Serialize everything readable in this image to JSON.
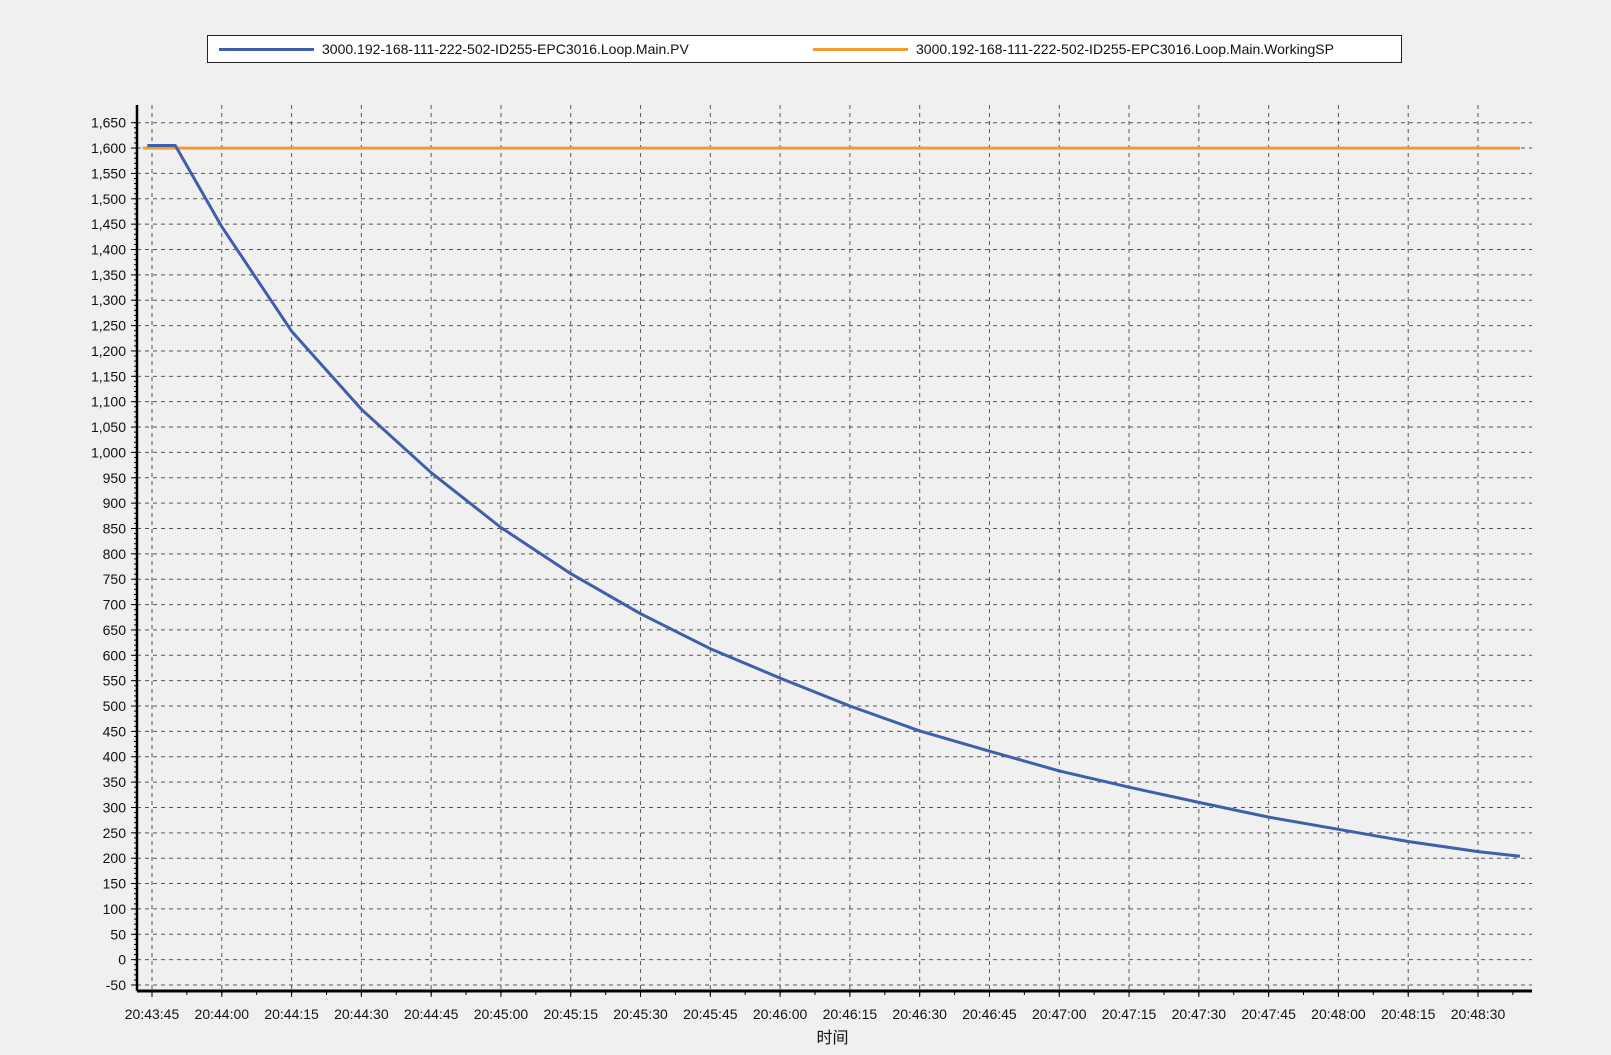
{
  "chart_data": {
    "type": "line",
    "title": "",
    "xlabel": "时间",
    "ylabel": "",
    "ylim": [
      -50,
      1650
    ],
    "yticks": [
      "-50",
      "0",
      "50",
      "100",
      "150",
      "200",
      "250",
      "300",
      "350",
      "400",
      "450",
      "500",
      "550",
      "600",
      "650",
      "700",
      "750",
      "800",
      "850",
      "900",
      "950",
      "1,000",
      "1,050",
      "1,100",
      "1,150",
      "1,200",
      "1,250",
      "1,300",
      "1,350",
      "1,400",
      "1,450",
      "1,500",
      "1,550",
      "1,600",
      "1,650"
    ],
    "xticks": [
      "20:43:45",
      "20:44:00",
      "20:44:15",
      "20:44:30",
      "20:44:45",
      "20:45:00",
      "20:45:15",
      "20:45:30",
      "20:45:45",
      "20:46:00",
      "20:46:15",
      "20:46:30",
      "20:46:45",
      "20:47:00",
      "20:47:15",
      "20:47:30",
      "20:47:45",
      "20:48:00",
      "20:48:15",
      "20:48:30"
    ],
    "grid": true,
    "legend_position": "top",
    "series": [
      {
        "name": "3000.192-168-111-222-502-ID255-EPC3016.Loop.Main.PV",
        "color": "#3f5fa8",
        "x": [
          "20:43:44",
          "20:43:50",
          "20:44:00",
          "20:44:15",
          "20:44:30",
          "20:44:45",
          "20:45:00",
          "20:45:15",
          "20:45:30",
          "20:45:45",
          "20:46:00",
          "20:46:15",
          "20:46:30",
          "20:46:45",
          "20:47:00",
          "20:47:15",
          "20:47:30",
          "20:47:45",
          "20:48:00",
          "20:48:15",
          "20:48:30",
          "20:48:39"
        ],
        "values": [
          1605,
          1605,
          1445,
          1239,
          1085,
          960,
          852,
          761,
          682,
          613,
          555,
          500,
          451,
          411,
          372,
          340,
          310,
          281,
          257,
          233,
          213,
          204
        ]
      },
      {
        "name": "3000.192-168-111-222-502-ID255-EPC3016.Loop.Main.WorkingSP",
        "color": "#f59a2e",
        "x": [
          "20:43:43",
          "20:48:39"
        ],
        "values": [
          1600,
          1600
        ]
      }
    ]
  }
}
